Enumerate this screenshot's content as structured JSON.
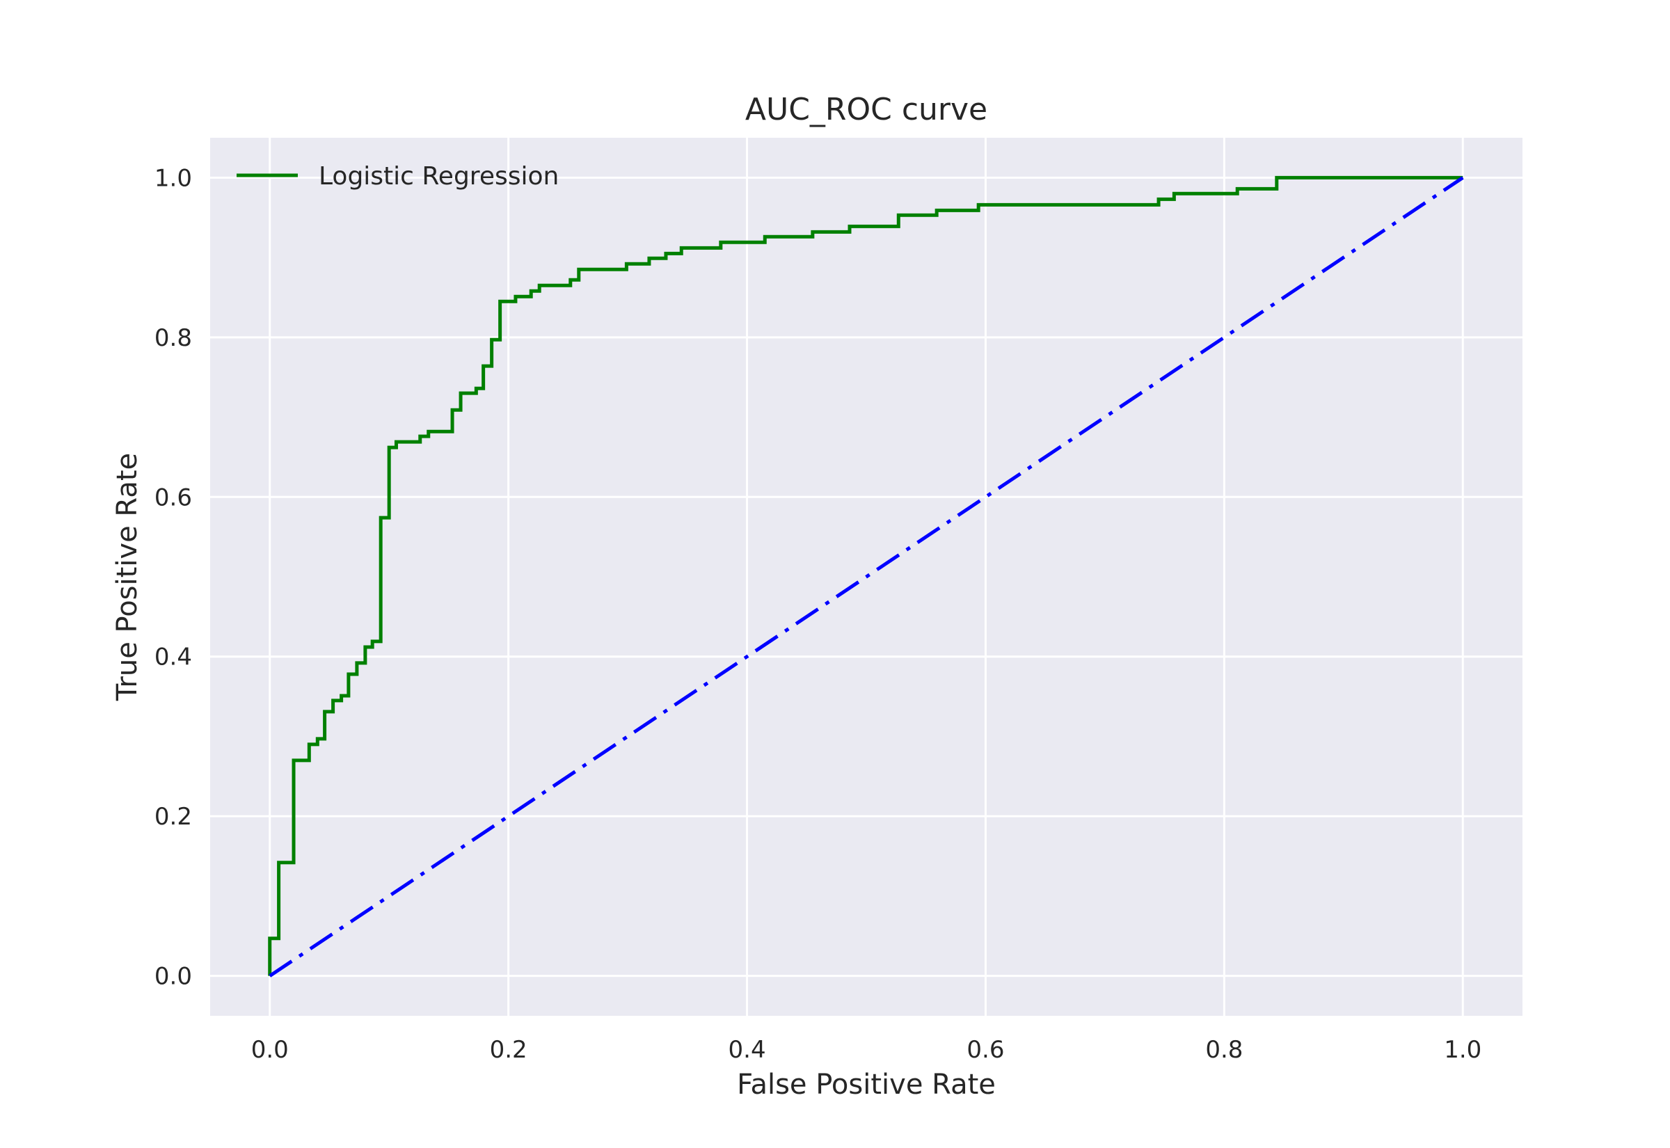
{
  "chart_data": {
    "type": "line",
    "title": "AUC_ROC curve",
    "xlabel": "False Positive Rate",
    "ylabel": "True Positive Rate",
    "xlim": [
      -0.05,
      1.05
    ],
    "ylim": [
      -0.05,
      1.05
    ],
    "x_ticks": [
      0.0,
      0.2,
      0.4,
      0.6,
      0.8,
      1.0
    ],
    "x_tick_labels": [
      "0.0",
      "0.2",
      "0.4",
      "0.6",
      "0.8",
      "1.0"
    ],
    "y_ticks": [
      0.0,
      0.2,
      0.4,
      0.6,
      0.8,
      1.0
    ],
    "y_tick_labels": [
      "0.0",
      "0.2",
      "0.4",
      "0.6",
      "0.8",
      "1.0"
    ],
    "grid": true,
    "legend_position": "upper-left",
    "background_color": "#EAEAF2",
    "series": [
      {
        "name": "Logistic Regression",
        "color": "#008000",
        "style": "solid",
        "x": [
          0.0,
          0.0,
          0.0075,
          0.0075,
          0.0075,
          0.0075,
          0.02,
          0.02,
          0.033,
          0.033,
          0.04,
          0.04,
          0.046,
          0.046,
          0.053,
          0.053,
          0.06,
          0.06,
          0.066,
          0.066,
          0.073,
          0.073,
          0.08,
          0.08,
          0.086,
          0.086,
          0.093,
          0.093,
          0.1,
          0.1,
          0.106,
          0.106,
          0.126,
          0.126,
          0.133,
          0.133,
          0.153,
          0.153,
          0.16,
          0.16,
          0.173,
          0.173,
          0.179,
          0.179,
          0.186,
          0.186,
          0.193,
          0.193,
          0.206,
          0.206,
          0.219,
          0.219,
          0.226,
          0.226,
          0.252,
          0.252,
          0.259,
          0.259,
          0.299,
          0.299,
          0.318,
          0.318,
          0.332,
          0.332,
          0.345,
          0.345,
          0.378,
          0.378,
          0.415,
          0.415,
          0.455,
          0.455,
          0.486,
          0.486,
          0.527,
          0.527,
          0.559,
          0.559,
          0.594,
          0.594,
          0.745,
          0.745,
          0.758,
          0.758,
          0.811,
          0.811,
          0.844,
          0.844,
          1.0
        ],
        "y": [
          0.0,
          0.047,
          0.047,
          0.047,
          0.047,
          0.142,
          0.142,
          0.27,
          0.27,
          0.29,
          0.29,
          0.297,
          0.297,
          0.331,
          0.331,
          0.345,
          0.345,
          0.351,
          0.351,
          0.378,
          0.378,
          0.392,
          0.392,
          0.412,
          0.412,
          0.419,
          0.419,
          0.574,
          0.574,
          0.662,
          0.662,
          0.669,
          0.669,
          0.676,
          0.676,
          0.682,
          0.682,
          0.709,
          0.709,
          0.73,
          0.73,
          0.736,
          0.736,
          0.764,
          0.764,
          0.797,
          0.797,
          0.845,
          0.845,
          0.851,
          0.851,
          0.858,
          0.858,
          0.865,
          0.865,
          0.872,
          0.872,
          0.885,
          0.885,
          0.892,
          0.892,
          0.899,
          0.899,
          0.905,
          0.905,
          0.912,
          0.912,
          0.919,
          0.919,
          0.926,
          0.926,
          0.932,
          0.932,
          0.939,
          0.939,
          0.953,
          0.953,
          0.959,
          0.959,
          0.966,
          0.966,
          0.973,
          0.973,
          0.98,
          0.98,
          0.986,
          0.986,
          1.0,
          1.0
        ]
      },
      {
        "name": "",
        "color": "#0000FF",
        "style": "dashdot",
        "x": [
          0.0,
          1.0
        ],
        "y": [
          0.0,
          1.0
        ]
      }
    ]
  }
}
